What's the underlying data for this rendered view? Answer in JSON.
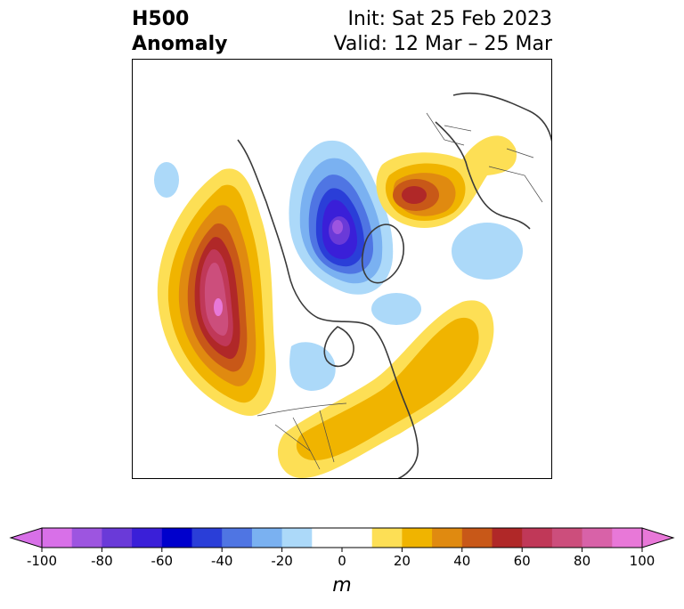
{
  "title": {
    "left_line1": "H500",
    "left_line2": "Anomaly",
    "right_line1": "Init: Sat 25 Feb 2023",
    "right_line2": "Valid: 12 Mar – 25 Mar"
  },
  "colorbar": {
    "label": "m",
    "ticks": [
      "-100",
      "-80",
      "-60",
      "-40",
      "-20",
      "0",
      "20",
      "40",
      "60",
      "80",
      "100"
    ],
    "tick_values": [
      -100,
      -80,
      -60,
      -40,
      -20,
      0,
      20,
      40,
      60,
      80,
      100
    ],
    "range": [
      -100,
      100
    ],
    "step": 10,
    "extend": "both",
    "colors": [
      "#d870e8",
      "#9d55e0",
      "#6a3ad8",
      "#3a1fd8",
      "#0000cc",
      "#2a3ed8",
      "#4f75e3",
      "#7ab1f1",
      "#acd9f9",
      "#ffffff",
      "#ffffff",
      "#fddf55",
      "#f0b400",
      "#e08a10",
      "#c85818",
      "#b02828",
      "#c03858",
      "#cc4e7c",
      "#d862a8",
      "#e878d8"
    ],
    "under_color": "#d870e8",
    "over_color": "#e878d8"
  },
  "map": {
    "projection": "north-polar-stereographic",
    "field": "500 hPa geopotential height anomaly",
    "features": [
      {
        "name": "pacific-ridge",
        "sign": "positive",
        "peak": 100
      },
      {
        "name": "arctic-trough",
        "sign": "negative",
        "peak": -80
      },
      {
        "name": "eurasia-ridge",
        "sign": "positive",
        "peak": 60
      },
      {
        "name": "atlantic-ridge",
        "sign": "positive",
        "peak": 20
      },
      {
        "name": "canada-trough",
        "sign": "negative",
        "peak": -20
      }
    ]
  },
  "colors": {
    "coastline": "#3a3a3a",
    "border": "#000000"
  }
}
